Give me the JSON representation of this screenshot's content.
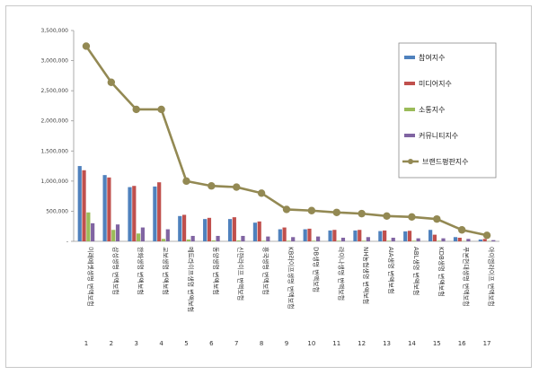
{
  "chart_data": {
    "type": "bar",
    "categories": [
      "미래에셋생명 변액보험",
      "삼성생명 변액보험",
      "한화생명 변액보험",
      "교보생명 변액보험",
      "메트라이프생명 변액보험",
      "동양생명 변액보험",
      "신한라이프 변액보험",
      "흥국생명 변액보험",
      "KB라이프생명 변액보험",
      "DB생명 변액보험",
      "라이나생명 변액보험",
      "NH농협생명 변액보험",
      "AIA생명 변액보험",
      "ABL생명 변액보험",
      "KDB생명 변액보험",
      "푸본현대생명 변액보험",
      "아이엠라이프 변액보험"
    ],
    "index_labels": [
      "1",
      "2",
      "3",
      "4",
      "5",
      "6",
      "7",
      "8",
      "9",
      "10",
      "11",
      "12",
      "13",
      "14",
      "15",
      "16",
      "17"
    ],
    "series": [
      {
        "name": "참여지수",
        "color": "#4f81bd",
        "kind": "bar",
        "values": [
          1250000,
          1100000,
          900000,
          910000,
          420000,
          370000,
          370000,
          310000,
          200000,
          200000,
          180000,
          180000,
          170000,
          165000,
          190000,
          70000,
          30000
        ]
      },
      {
        "name": "미디어지수",
        "color": "#c0504d",
        "kind": "bar",
        "values": [
          1180000,
          1060000,
          920000,
          980000,
          440000,
          390000,
          400000,
          330000,
          230000,
          210000,
          190000,
          190000,
          180000,
          175000,
          110000,
          60000,
          40000
        ]
      },
      {
        "name": "소통지수",
        "color": "#9bbb59",
        "kind": "bar",
        "values": [
          480000,
          190000,
          130000,
          40000,
          30000,
          15000,
          15000,
          10000,
          10000,
          10000,
          10000,
          10000,
          10000,
          10000,
          10000,
          5000,
          5000
        ]
      },
      {
        "name": "커뮤니티지수",
        "color": "#8064a2",
        "kind": "bar",
        "values": [
          300000,
          280000,
          230000,
          200000,
          90000,
          90000,
          90000,
          80000,
          70000,
          80000,
          60000,
          70000,
          60000,
          50000,
          50000,
          40000,
          20000
        ]
      },
      {
        "name": "브랜드평판지수",
        "color": "#938953",
        "kind": "line",
        "values": [
          3240000,
          2640000,
          2190000,
          2190000,
          1000000,
          920000,
          900000,
          800000,
          530000,
          510000,
          480000,
          460000,
          420000,
          405000,
          370000,
          190000,
          100000
        ]
      }
    ],
    "y_ticks": [
      "-",
      "500,000",
      "1,000,000",
      "1,500,000",
      "2,000,000",
      "2,500,000",
      "3,000,000",
      "3,500,000"
    ],
    "ylim": [
      0,
      3500000
    ],
    "grid": false,
    "legend_position": "top-right",
    "title": "",
    "xlabel": "",
    "ylabel": ""
  }
}
